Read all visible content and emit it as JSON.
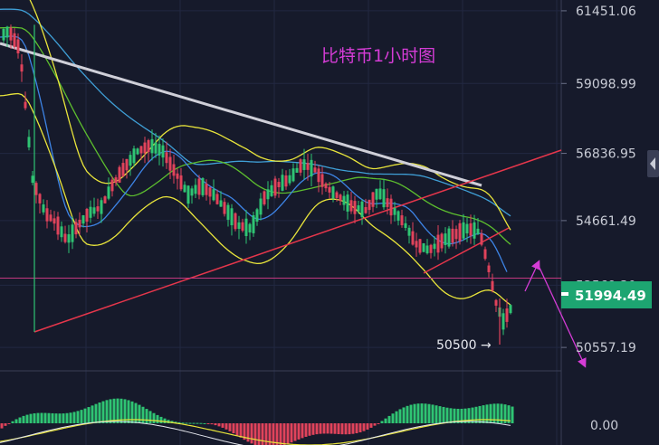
{
  "chart_data": {
    "type": "candlestick",
    "title": "比特币1小时图",
    "y_ticks": [
      "61451.06",
      "59098.99",
      "56836.95",
      "54661.49",
      "52569.30",
      "50557.19"
    ],
    "ylim": [
      49800,
      61800
    ],
    "current_price": "51994.49",
    "low_annotation": "50500 →",
    "support_level": 52800,
    "indicator_zero": "0.00",
    "colors": {
      "background": "#161a2b",
      "bull": "#2fc473",
      "bear": "#e0435b",
      "trendline_white": "#cfcfd8",
      "trendline_red": "#e5364b",
      "support": "#c2387f",
      "arrow": "#d53cd6",
      "bollinger": "#e9e53b",
      "ma_blue": "#3d84e6",
      "ma_green": "#5dbe2e",
      "ma_cyan": "#3f9fd6",
      "badge": "#1da571"
    },
    "candle_trend": [
      [
        0,
        60600
      ],
      [
        10,
        60800
      ],
      [
        22,
        60200
      ],
      [
        36,
        56000
      ],
      [
        50,
        54900
      ],
      [
        62,
        54600
      ],
      [
        74,
        54000
      ],
      [
        86,
        54500
      ],
      [
        98,
        54900
      ],
      [
        112,
        55100
      ],
      [
        124,
        55800
      ],
      [
        138,
        56400
      ],
      [
        152,
        56900
      ],
      [
        166,
        57100
      ],
      [
        180,
        56900
      ],
      [
        194,
        56200
      ],
      [
        208,
        55500
      ],
      [
        222,
        55800
      ],
      [
        236,
        55500
      ],
      [
        250,
        55000
      ],
      [
        264,
        54500
      ],
      [
        278,
        54400
      ],
      [
        292,
        55400
      ],
      [
        306,
        55800
      ],
      [
        320,
        56000
      ],
      [
        334,
        56500
      ],
      [
        348,
        56300
      ],
      [
        362,
        55700
      ],
      [
        376,
        55400
      ],
      [
        390,
        55100
      ],
      [
        404,
        55000
      ],
      [
        418,
        55600
      ],
      [
        432,
        55100
      ],
      [
        446,
        54600
      ],
      [
        460,
        53900
      ],
      [
        474,
        53700
      ],
      [
        488,
        54000
      ],
      [
        502,
        54200
      ],
      [
        516,
        54400
      ],
      [
        530,
        54300
      ],
      [
        540,
        53100
      ],
      [
        548,
        52000
      ],
      [
        556,
        51400
      ],
      [
        566,
        51900
      ]
    ]
  }
}
